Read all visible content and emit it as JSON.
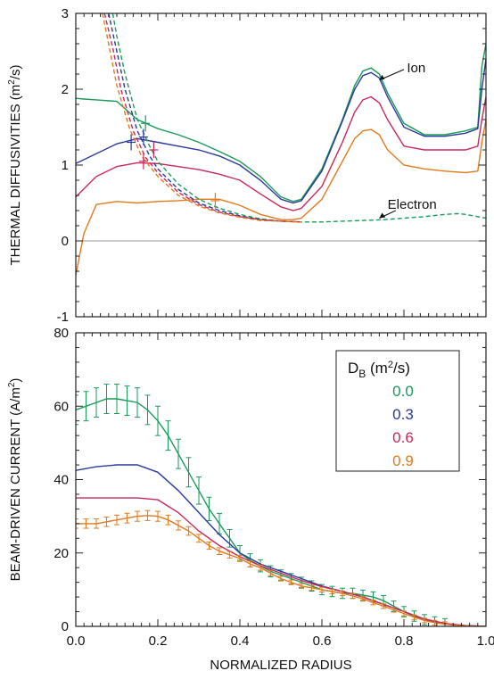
{
  "chart_data": [
    {
      "type": "line",
      "panel": "top",
      "ylabel": "THERMAL DIFFUSIVITIES (m²/s)",
      "ylabel_main": "THERMAL DIFFUSIVITIES (m",
      "ylabel_sup": "2",
      "ylabel_end": "/s)",
      "xlim": [
        0,
        1.0
      ],
      "ylim": [
        -1,
        3
      ],
      "yticks": [
        "-1",
        "0",
        "1",
        "2",
        "3"
      ],
      "zero_line": true,
      "annotations": [
        {
          "text": "Ion",
          "x": 0.71,
          "y": 2.28
        },
        {
          "text": "Electron",
          "x": 0.72,
          "y": 0.35
        }
      ],
      "series": [
        {
          "color": "#1a9a5a",
          "role": "ion",
          "x": [
            0.0,
            0.02,
            0.05,
            0.1,
            0.15,
            0.2,
            0.25,
            0.3,
            0.35,
            0.4,
            0.45,
            0.5,
            0.53,
            0.55,
            0.6,
            0.65,
            0.68,
            0.7,
            0.72,
            0.74,
            0.76,
            0.8,
            0.85,
            0.9,
            0.95,
            0.98,
            0.99,
            1.0
          ],
          "y": [
            1.88,
            1.87,
            1.86,
            1.84,
            1.6,
            1.48,
            1.4,
            1.3,
            1.18,
            1.05,
            0.85,
            0.58,
            0.52,
            0.55,
            0.95,
            1.6,
            2.05,
            2.24,
            2.28,
            2.2,
            1.95,
            1.55,
            1.4,
            1.4,
            1.45,
            1.5,
            2.3,
            2.6
          ]
        },
        {
          "color": "#2a3a9a",
          "role": "ion",
          "x": [
            0.0,
            0.05,
            0.1,
            0.15,
            0.2,
            0.25,
            0.3,
            0.35,
            0.4,
            0.45,
            0.5,
            0.53,
            0.55,
            0.6,
            0.65,
            0.68,
            0.7,
            0.72,
            0.74,
            0.76,
            0.8,
            0.85,
            0.9,
            0.95,
            0.98,
            0.99,
            1.0
          ],
          "y": [
            1.02,
            1.15,
            1.28,
            1.35,
            1.3,
            1.25,
            1.2,
            1.12,
            1.0,
            0.8,
            0.55,
            0.5,
            0.53,
            0.92,
            1.58,
            2.0,
            2.18,
            2.22,
            2.15,
            1.9,
            1.5,
            1.38,
            1.38,
            1.42,
            1.48,
            2.0,
            2.4
          ]
        },
        {
          "color": "#c8285a",
          "role": "ion",
          "x": [
            0.0,
            0.05,
            0.1,
            0.15,
            0.2,
            0.25,
            0.3,
            0.35,
            0.4,
            0.45,
            0.5,
            0.53,
            0.55,
            0.6,
            0.65,
            0.68,
            0.7,
            0.72,
            0.74,
            0.76,
            0.8,
            0.85,
            0.9,
            0.95,
            0.98,
            0.99,
            1.0
          ],
          "y": [
            0.58,
            0.85,
            0.98,
            1.03,
            1.02,
            0.98,
            0.94,
            0.88,
            0.8,
            0.62,
            0.45,
            0.4,
            0.43,
            0.72,
            1.3,
            1.7,
            1.86,
            1.9,
            1.82,
            1.6,
            1.25,
            1.2,
            1.2,
            1.2,
            1.25,
            1.6,
            1.9
          ]
        },
        {
          "color": "#e07a1e",
          "role": "ion",
          "x": [
            0.0,
            0.02,
            0.05,
            0.1,
            0.15,
            0.2,
            0.25,
            0.3,
            0.35,
            0.4,
            0.45,
            0.5,
            0.53,
            0.55,
            0.6,
            0.65,
            0.68,
            0.7,
            0.72,
            0.74,
            0.76,
            0.8,
            0.85,
            0.9,
            0.95,
            0.98,
            0.99,
            1.0
          ],
          "y": [
            -0.45,
            0.1,
            0.48,
            0.52,
            0.5,
            0.52,
            0.53,
            0.55,
            0.55,
            0.47,
            0.35,
            0.28,
            0.28,
            0.3,
            0.55,
            1.05,
            1.35,
            1.45,
            1.47,
            1.4,
            1.2,
            1.0,
            0.95,
            0.92,
            0.9,
            0.92,
            1.3,
            1.6
          ]
        },
        {
          "color": "#1a9a5a",
          "role": "electron",
          "dash": true,
          "x": [
            0.09,
            0.1,
            0.12,
            0.15,
            0.18,
            0.2,
            0.25,
            0.3,
            0.35,
            0.4,
            0.45,
            0.5,
            0.55,
            0.6,
            0.65,
            0.7,
            0.75,
            0.8,
            0.85,
            0.9,
            0.93,
            0.95,
            0.98,
            1.0
          ],
          "y": [
            3.0,
            2.7,
            2.2,
            1.6,
            1.25,
            1.05,
            0.75,
            0.55,
            0.43,
            0.35,
            0.29,
            0.26,
            0.25,
            0.25,
            0.26,
            0.27,
            0.28,
            0.3,
            0.32,
            0.35,
            0.36,
            0.35,
            0.32,
            0.3
          ]
        },
        {
          "color": "#2a3a9a",
          "role": "electron",
          "dash": true,
          "x": [
            0.08,
            0.1,
            0.12,
            0.15,
            0.18,
            0.2,
            0.25,
            0.3,
            0.35,
            0.4,
            0.45,
            0.5,
            0.55
          ],
          "y": [
            3.0,
            2.5,
            2.0,
            1.45,
            1.12,
            0.95,
            0.68,
            0.5,
            0.4,
            0.33,
            0.28,
            0.26,
            0.25
          ]
        },
        {
          "color": "#c8285a",
          "role": "electron",
          "dash": true,
          "x": [
            0.07,
            0.09,
            0.11,
            0.14,
            0.17,
            0.2,
            0.25,
            0.3,
            0.35,
            0.4,
            0.45,
            0.5,
            0.55
          ],
          "y": [
            3.0,
            2.55,
            2.0,
            1.45,
            1.1,
            0.9,
            0.64,
            0.48,
            0.38,
            0.32,
            0.28,
            0.26,
            0.25
          ]
        },
        {
          "color": "#e07a1e",
          "role": "electron",
          "dash": true,
          "x": [
            0.065,
            0.08,
            0.1,
            0.13,
            0.16,
            0.2,
            0.25,
            0.3,
            0.35,
            0.4,
            0.45,
            0.5,
            0.55
          ],
          "y": [
            3.0,
            2.6,
            2.05,
            1.5,
            1.12,
            0.85,
            0.6,
            0.46,
            0.37,
            0.31,
            0.27,
            0.26,
            0.25
          ]
        }
      ],
      "markers": [
        {
          "color": "#2a3a9a",
          "x": 0.135,
          "y": 1.3
        },
        {
          "color": "#2a3a9a",
          "x": 0.165,
          "y": 1.37
        },
        {
          "color": "#1a9a5a",
          "x": 0.17,
          "y": 1.55
        },
        {
          "color": "#c8285a",
          "x": 0.165,
          "y": 1.05
        },
        {
          "color": "#c8285a",
          "x": 0.19,
          "y": 1.2
        },
        {
          "color": "#e07a1e",
          "x": 0.34,
          "y": 0.53
        }
      ]
    },
    {
      "type": "line",
      "panel": "bottom",
      "xlabel": "NORMALIZED RADIUS",
      "ylabel": "BEAM-DRIVEN CURRENT (A/m²)",
      "ylabel_main": "BEAM-DRIVEN CURRENT (A/m",
      "ylabel_sup": "2",
      "ylabel_end": ")",
      "xlim": [
        0,
        1.0
      ],
      "ylim": [
        0,
        80
      ],
      "xticks": [
        "0.0",
        "0.2",
        "0.4",
        "0.6",
        "0.8",
        "1.0"
      ],
      "yticks": [
        "0",
        "20",
        "40",
        "60",
        "80"
      ],
      "legend": {
        "title_main": "D",
        "title_sub": "B",
        "title_end": " (m",
        "title_sup": "2",
        "title_close": "/s)",
        "entries": [
          {
            "label": "0.0",
            "color": "#1a9a5a"
          },
          {
            "label": "0.3",
            "color": "#2a3a9a"
          },
          {
            "label": "0.6",
            "color": "#c8285a"
          },
          {
            "label": "0.9",
            "color": "#e07a1e"
          }
        ]
      },
      "series": [
        {
          "color": "#1a9a5a",
          "errorbars": true,
          "err": 4.0,
          "x": [
            0.0,
            0.025,
            0.05,
            0.075,
            0.1,
            0.125,
            0.15,
            0.175,
            0.2,
            0.225,
            0.25,
            0.275,
            0.3,
            0.325,
            0.35,
            0.375,
            0.4,
            0.425,
            0.45,
            0.475,
            0.5,
            0.525,
            0.55,
            0.575,
            0.6,
            0.625,
            0.65,
            0.675,
            0.7,
            0.725,
            0.75,
            0.775,
            0.8,
            0.825,
            0.85,
            0.875,
            0.9,
            0.925,
            0.95,
            0.975,
            1.0
          ],
          "y": [
            59,
            60,
            61,
            62,
            62,
            61.5,
            61,
            59,
            56,
            52,
            47,
            42,
            37,
            32,
            28,
            24,
            20,
            18,
            16.5,
            15,
            14,
            13,
            12,
            11,
            10,
            9.5,
            9,
            9,
            8.5,
            8,
            7,
            5.5,
            4,
            2.8,
            1.8,
            1.2,
            0.7,
            0.4,
            0.2,
            0.1,
            0.0
          ]
        },
        {
          "color": "#2a3a9a",
          "x": [
            0.0,
            0.05,
            0.1,
            0.15,
            0.2,
            0.25,
            0.3,
            0.35,
            0.4,
            0.45,
            0.5,
            0.55,
            0.6,
            0.65,
            0.7,
            0.75,
            0.8,
            0.85,
            0.9,
            0.95,
            1.0
          ],
          "y": [
            42.5,
            43.5,
            44,
            44,
            42,
            37,
            31,
            25,
            20,
            17,
            15,
            13,
            11,
            9.5,
            8,
            6,
            4,
            2,
            0.8,
            0.2,
            0.0
          ]
        },
        {
          "color": "#c8285a",
          "x": [
            0.0,
            0.05,
            0.1,
            0.15,
            0.2,
            0.25,
            0.3,
            0.35,
            0.4,
            0.45,
            0.5,
            0.55,
            0.6,
            0.65,
            0.7,
            0.75,
            0.8,
            0.85,
            0.9,
            0.95,
            1.0
          ],
          "y": [
            35,
            35,
            35,
            35,
            34.5,
            31,
            26,
            22,
            19,
            16.5,
            14.5,
            12.5,
            10.8,
            9.5,
            8,
            6,
            4,
            2,
            0.8,
            0.2,
            0.0
          ]
        },
        {
          "color": "#e07a1e",
          "errorbars": true,
          "err": 1.8,
          "x": [
            0.0,
            0.025,
            0.05,
            0.075,
            0.1,
            0.125,
            0.15,
            0.175,
            0.2,
            0.225,
            0.25,
            0.275,
            0.3,
            0.325,
            0.35,
            0.375,
            0.4,
            0.425,
            0.45,
            0.475,
            0.5,
            0.525,
            0.55,
            0.575,
            0.6,
            0.625,
            0.65,
            0.675,
            0.7,
            0.725,
            0.75,
            0.775,
            0.8,
            0.825,
            0.85,
            0.875,
            0.9,
            0.925,
            0.95,
            0.975,
            1.0
          ],
          "y": [
            28,
            28,
            28,
            28.5,
            29,
            29.5,
            30,
            30.2,
            30,
            29,
            27.5,
            26,
            24,
            22,
            20.5,
            19.5,
            18.5,
            17,
            16,
            14.5,
            13,
            12,
            11,
            10.5,
            10,
            9.5,
            9,
            8.3,
            7.5,
            6.5,
            5.5,
            4.5,
            3.5,
            2.5,
            1.6,
            1,
            0.6,
            0.3,
            0.15,
            0.05,
            0.0
          ]
        }
      ]
    }
  ]
}
